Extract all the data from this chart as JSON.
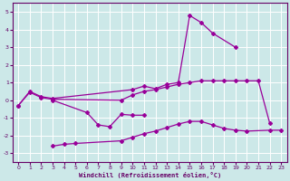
{
  "xlabel": "Windchill (Refroidissement éolien,°C)",
  "background_color": "#cce8e8",
  "grid_color": "#ffffff",
  "line_color": "#990099",
  "xlim": [
    -0.5,
    23.5
  ],
  "ylim": [
    -3.5,
    5.5
  ],
  "yticks": [
    -3,
    -2,
    -1,
    0,
    1,
    2,
    3,
    4,
    5
  ],
  "xticks": [
    0,
    1,
    2,
    3,
    4,
    5,
    6,
    7,
    8,
    9,
    10,
    11,
    12,
    13,
    14,
    15,
    16,
    17,
    18,
    19,
    20,
    21,
    22,
    23
  ],
  "series": {
    "line1_x": [
      0,
      1,
      2,
      3,
      10,
      11,
      12,
      13,
      14,
      15,
      16,
      17,
      19
    ],
    "line1_y": [
      -0.3,
      0.5,
      0.2,
      0.1,
      0.6,
      0.8,
      0.65,
      0.9,
      1.0,
      4.8,
      4.4,
      3.8,
      3.0
    ],
    "line2_x": [
      0,
      1,
      2,
      3,
      9,
      10,
      11,
      12,
      13,
      14,
      15,
      16,
      17,
      18,
      19,
      20,
      21,
      22
    ],
    "line2_y": [
      -0.3,
      0.45,
      0.15,
      0.05,
      0.0,
      0.3,
      0.5,
      0.6,
      0.75,
      0.9,
      1.0,
      1.1,
      1.1,
      1.1,
      1.1,
      1.1,
      1.1,
      -1.3
    ],
    "line3_x": [
      3,
      6,
      7,
      8,
      9,
      10,
      11
    ],
    "line3_y": [
      0.0,
      -0.7,
      -1.4,
      -1.5,
      -0.8,
      -0.85,
      -0.85
    ],
    "line4_x": [
      6,
      7,
      8
    ],
    "line4_y": [
      -0.7,
      -1.5,
      -1.5
    ],
    "line5_x": [
      3,
      4,
      5,
      9,
      10,
      11,
      12,
      13,
      14,
      15,
      16,
      17,
      18,
      19,
      20,
      22,
      23
    ],
    "line5_y": [
      -2.6,
      -2.5,
      -2.45,
      -2.3,
      -2.1,
      -1.9,
      -1.75,
      -1.55,
      -1.35,
      -1.2,
      -1.2,
      -1.4,
      -1.6,
      -1.7,
      -1.75,
      -1.7,
      -1.7
    ]
  }
}
